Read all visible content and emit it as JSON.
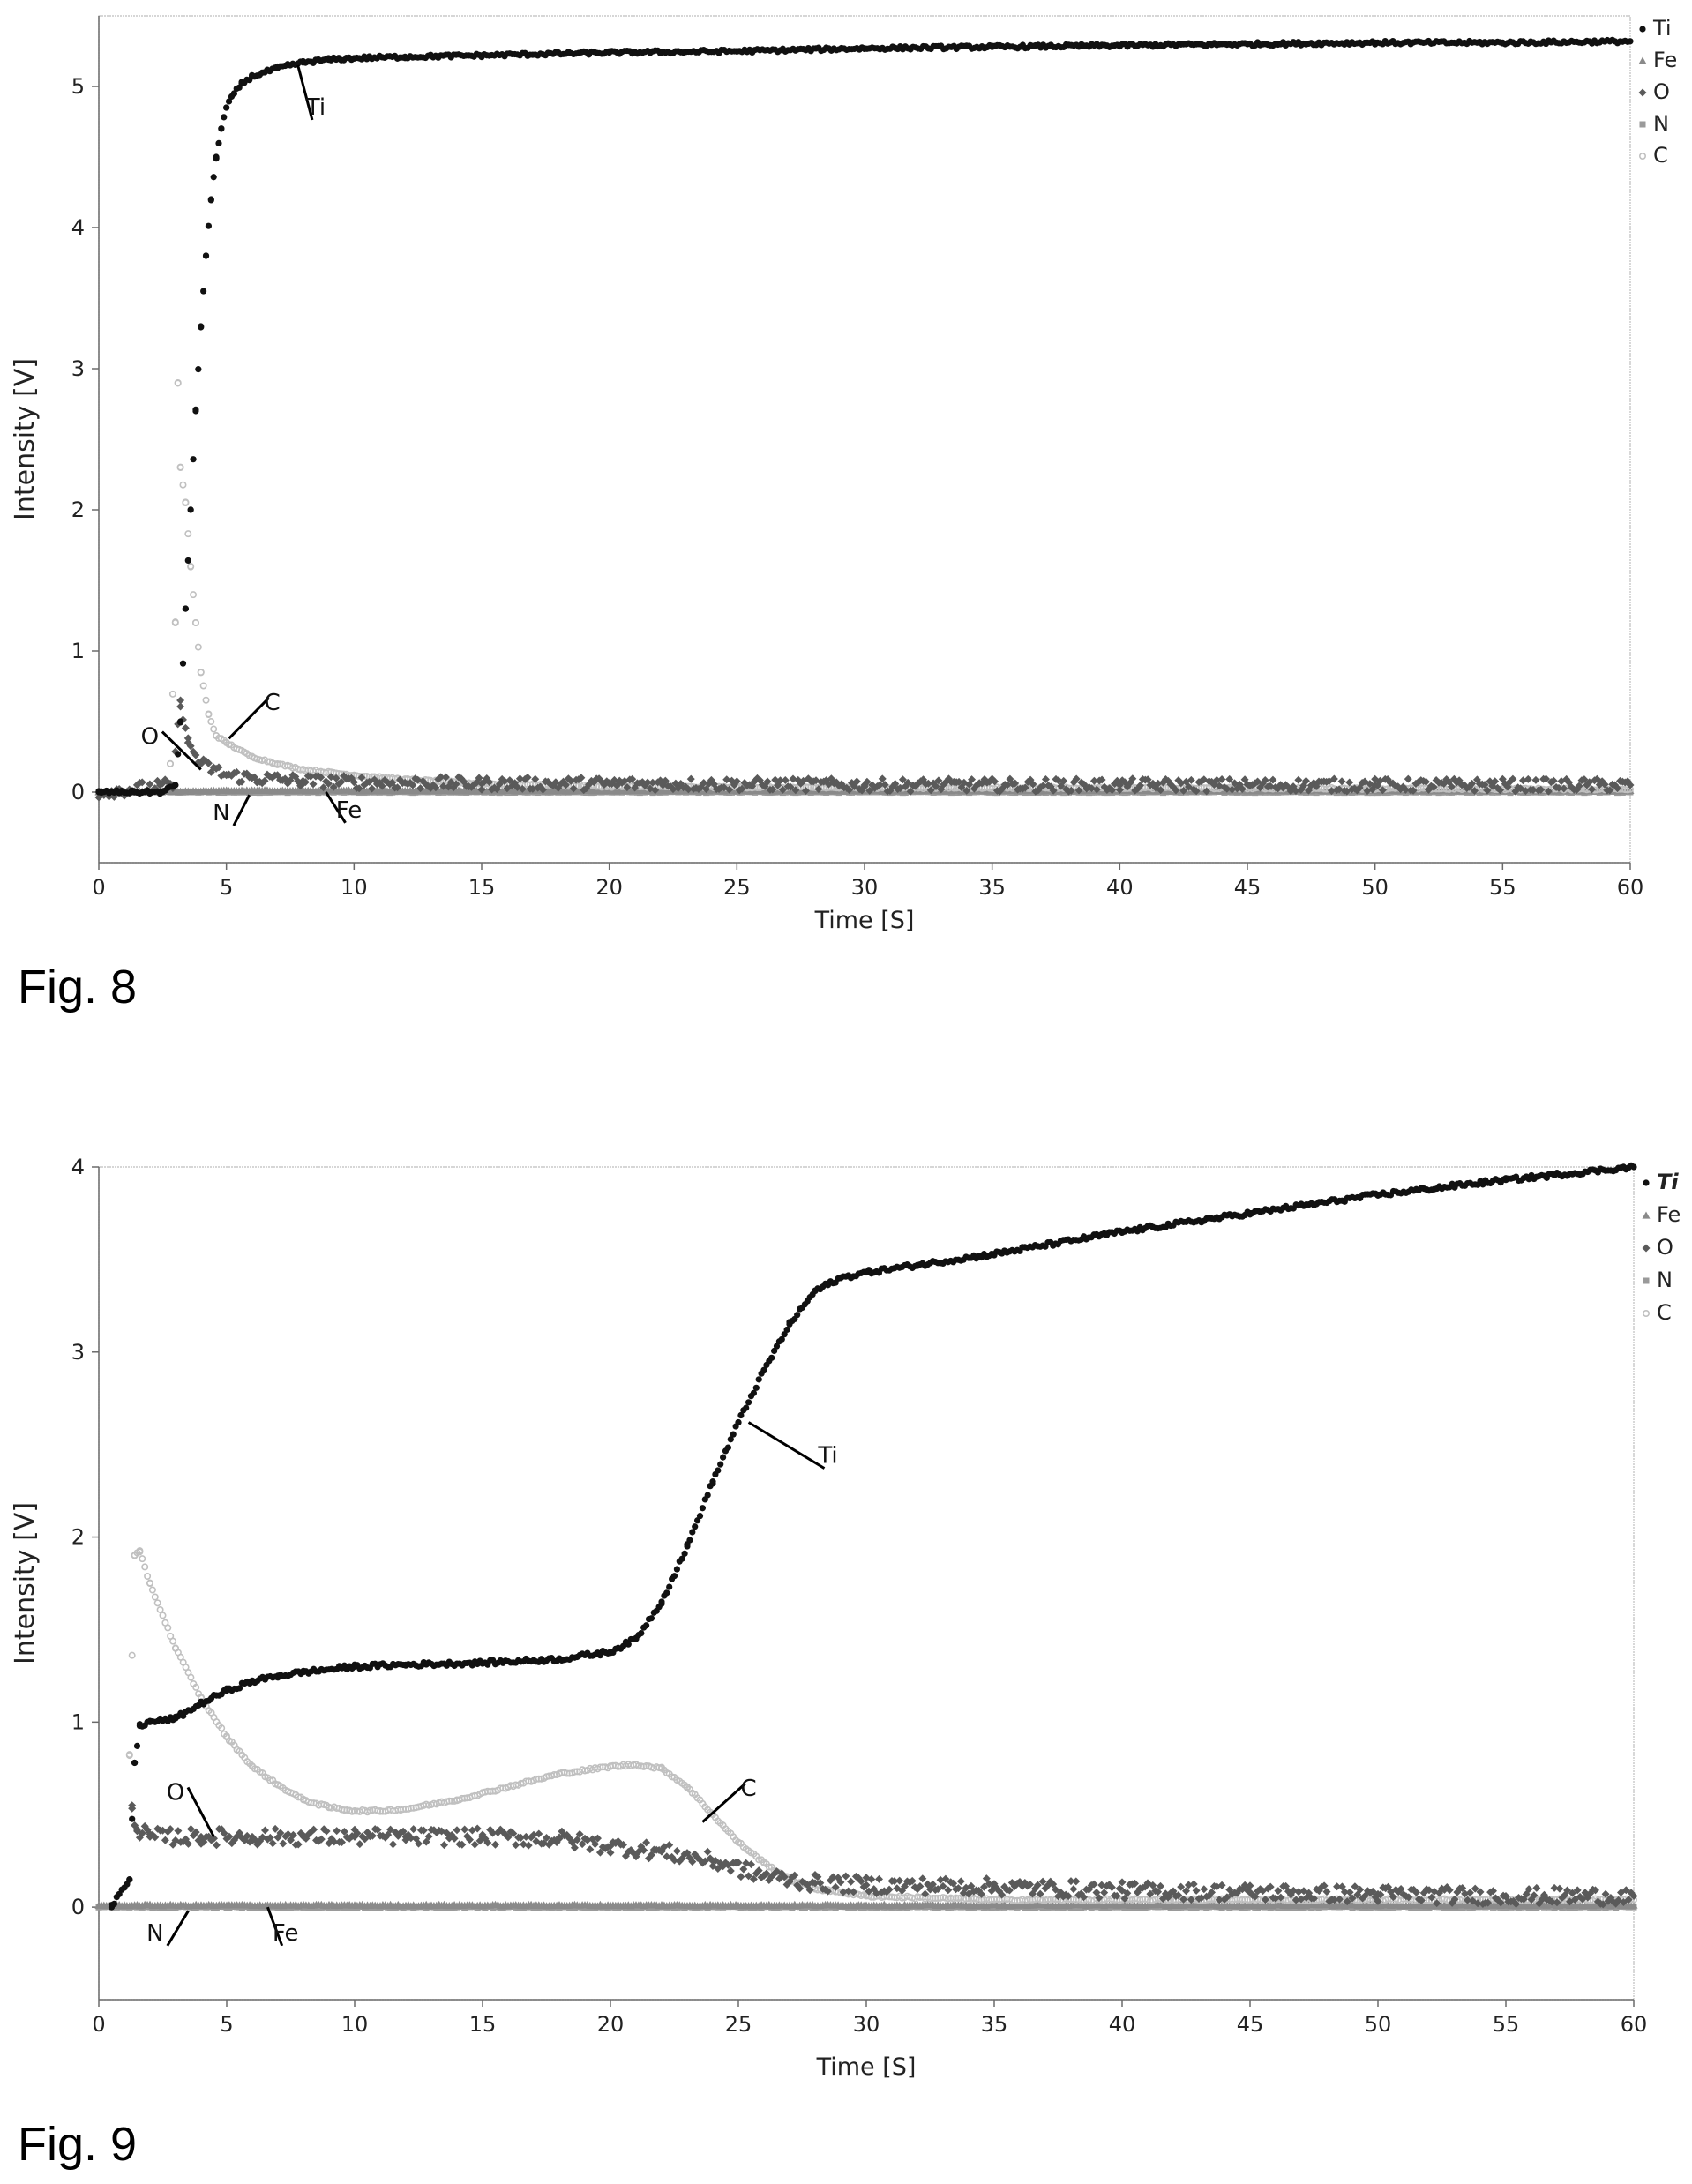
{
  "chart_data": [
    {
      "type": "scatter",
      "figure_label": "Fig. 8",
      "xlabel": "Time [S]",
      "ylabel": "Intensity [V]",
      "xlim": [
        0,
        60
      ],
      "ylim": [
        -0.5,
        5.5
      ],
      "xticks": [
        0,
        5,
        10,
        15,
        20,
        25,
        30,
        35,
        40,
        45,
        50,
        55,
        60
      ],
      "yticks": [
        0,
        1,
        2,
        3,
        4,
        5
      ],
      "grid": false,
      "legend_position": "top-right",
      "series": [
        {
          "name": "Ti",
          "marker": "circle",
          "color": "#111111",
          "x": [
            0,
            2.5,
            3.0,
            3.2,
            3.4,
            3.6,
            3.8,
            4.0,
            4.2,
            4.4,
            4.6,
            4.8,
            5.0,
            5.3,
            5.6,
            6.0,
            6.5,
            7.0,
            7.5,
            8.0,
            9.0,
            10,
            12,
            15,
            20,
            25,
            30,
            35,
            40,
            45,
            50,
            55,
            60
          ],
          "y": [
            0,
            0,
            0.05,
            0.5,
            1.3,
            2.0,
            2.7,
            3.3,
            3.8,
            4.2,
            4.5,
            4.7,
            4.85,
            4.95,
            5.02,
            5.07,
            5.1,
            5.13,
            5.15,
            5.17,
            5.19,
            5.2,
            5.21,
            5.22,
            5.24,
            5.25,
            5.27,
            5.28,
            5.29,
            5.3,
            5.31,
            5.31,
            5.32
          ]
        },
        {
          "name": "Fe",
          "marker": "triangle",
          "color": "#8a8a8a",
          "x": [
            0,
            5,
            10,
            15,
            20,
            25,
            30,
            35,
            40,
            45,
            50,
            55,
            60
          ],
          "y": [
            0,
            0.01,
            0.01,
            0.01,
            0.01,
            0.01,
            0.01,
            0.01,
            0.01,
            0.01,
            0.01,
            0.01,
            0.01
          ]
        },
        {
          "name": "O",
          "marker": "diamond",
          "color": "#5a5a5a",
          "x": [
            0,
            2.9,
            3.2,
            3.5,
            4.0,
            5.0,
            6.0,
            8.0,
            10,
            15,
            20,
            30,
            40,
            50,
            60
          ],
          "y": [
            0,
            0.05,
            0.65,
            0.35,
            0.2,
            0.12,
            0.1,
            0.08,
            0.07,
            0.06,
            0.06,
            0.05,
            0.05,
            0.05,
            0.05
          ]
        },
        {
          "name": "N",
          "marker": "square",
          "color": "#9a9a9a",
          "x": [
            0,
            10,
            20,
            30,
            40,
            50,
            60
          ],
          "y": [
            0,
            0,
            0,
            0,
            0,
            0,
            0
          ]
        },
        {
          "name": "C",
          "marker": "star",
          "color": "#c0c0c0",
          "x": [
            2.8,
            3.0,
            3.1,
            3.2,
            3.4,
            3.6,
            3.8,
            4.0,
            4.3,
            4.6,
            5.0,
            6.0,
            7.0,
            8.0,
            10,
            12,
            15,
            20,
            30,
            40,
            60
          ],
          "y": [
            0.2,
            1.2,
            2.9,
            2.3,
            2.05,
            1.6,
            1.2,
            0.85,
            0.55,
            0.4,
            0.35,
            0.25,
            0.2,
            0.16,
            0.12,
            0.09,
            0.06,
            0.04,
            0.03,
            0.03,
            0.02
          ]
        }
      ],
      "annotations": [
        {
          "text": "Ti",
          "x": 8.5,
          "y": 4.8,
          "point": [
            7.8,
            5.15
          ]
        },
        {
          "text": "C",
          "x": 6.8,
          "y": 0.58,
          "point": [
            5.1,
            0.38
          ]
        },
        {
          "text": "O",
          "x": 2.0,
          "y": 0.34,
          "point": [
            4.0,
            0.16
          ]
        },
        {
          "text": "N",
          "x": 4.8,
          "y": -0.2,
          "point": [
            5.9,
            -0.02
          ]
        },
        {
          "text": "Fe",
          "x": 9.8,
          "y": -0.18,
          "point": [
            8.9,
            0.0
          ]
        }
      ]
    },
    {
      "type": "scatter",
      "figure_label": "Fig. 9",
      "xlabel": "Time [S]",
      "ylabel": "Intensity [V]",
      "xlim": [
        0,
        60
      ],
      "ylim": [
        -0.5,
        4.0
      ],
      "xticks": [
        0,
        5,
        10,
        15,
        20,
        25,
        30,
        35,
        40,
        45,
        50,
        55,
        60
      ],
      "yticks": [
        0,
        1,
        2,
        3,
        4
      ],
      "grid": false,
      "legend_position": "top-right",
      "series": [
        {
          "name": "Ti",
          "marker": "circle",
          "color": "#111111",
          "x": [
            0.5,
            1.2,
            1.4,
            1.6,
            2.0,
            3.0,
            4.0,
            5.0,
            6.0,
            7.0,
            8.0,
            10,
            12,
            15,
            18,
            20,
            21,
            22,
            23,
            24,
            25,
            26,
            27,
            28,
            29,
            30,
            32,
            35,
            40,
            45,
            50,
            55,
            60
          ],
          "y": [
            0,
            0.15,
            0.78,
            0.98,
            1.0,
            1.02,
            1.1,
            1.17,
            1.22,
            1.25,
            1.27,
            1.3,
            1.31,
            1.32,
            1.34,
            1.38,
            1.45,
            1.65,
            1.95,
            2.3,
            2.62,
            2.9,
            3.15,
            3.33,
            3.4,
            3.43,
            3.47,
            3.53,
            3.65,
            3.75,
            3.85,
            3.93,
            4.0
          ]
        },
        {
          "name": "Fe",
          "marker": "triangle",
          "color": "#8a8a8a",
          "x": [
            0,
            10,
            20,
            30,
            40,
            50,
            60
          ],
          "y": [
            0.01,
            0.01,
            0.01,
            0.01,
            0.01,
            0.01,
            0.01
          ]
        },
        {
          "name": "O",
          "marker": "diamond",
          "color": "#5a5a5a",
          "x": [
            1.3,
            1.5,
            2.0,
            4.0,
            6.0,
            8.0,
            10,
            12,
            15,
            18,
            20,
            22,
            24,
            26,
            28,
            30,
            35,
            40,
            45,
            50,
            55,
            60
          ],
          "y": [
            0.55,
            0.42,
            0.38,
            0.38,
            0.38,
            0.38,
            0.38,
            0.38,
            0.38,
            0.37,
            0.33,
            0.3,
            0.25,
            0.17,
            0.13,
            0.12,
            0.11,
            0.09,
            0.08,
            0.07,
            0.06,
            0.06
          ]
        },
        {
          "name": "N",
          "marker": "square",
          "color": "#9a9a9a",
          "x": [
            0,
            10,
            20,
            30,
            40,
            50,
            60
          ],
          "y": [
            0,
            0,
            0,
            0,
            0,
            0,
            0
          ]
        },
        {
          "name": "C",
          "marker": "star",
          "color": "#c0c0c0",
          "x": [
            1.2,
            1.4,
            1.6,
            2.0,
            3.0,
            4.0,
            5.0,
            6.0,
            7.0,
            8.0,
            9.0,
            10,
            11,
            12,
            14,
            16,
            18,
            20,
            21,
            22,
            23,
            24,
            25,
            26,
            27,
            28,
            30,
            35,
            40,
            50,
            60
          ],
          "y": [
            0.82,
            1.9,
            1.92,
            1.75,
            1.4,
            1.13,
            0.92,
            0.76,
            0.66,
            0.58,
            0.54,
            0.52,
            0.52,
            0.53,
            0.58,
            0.65,
            0.72,
            0.76,
            0.77,
            0.75,
            0.65,
            0.5,
            0.35,
            0.24,
            0.15,
            0.1,
            0.06,
            0.04,
            0.04,
            0.04,
            0.04
          ]
        }
      ],
      "annotations": [
        {
          "text": "Ti",
          "x": 28.5,
          "y": 2.4,
          "point": [
            25.4,
            2.62
          ]
        },
        {
          "text": "C",
          "x": 25.4,
          "y": 0.6,
          "point": [
            23.6,
            0.46
          ]
        },
        {
          "text": "O",
          "x": 3.0,
          "y": 0.58,
          "point": [
            4.5,
            0.38
          ]
        },
        {
          "text": "N",
          "x": 2.2,
          "y": -0.18,
          "point": [
            3.5,
            -0.02
          ]
        },
        {
          "text": "Fe",
          "x": 7.3,
          "y": -0.18,
          "point": [
            6.6,
            0.0
          ]
        }
      ]
    }
  ]
}
